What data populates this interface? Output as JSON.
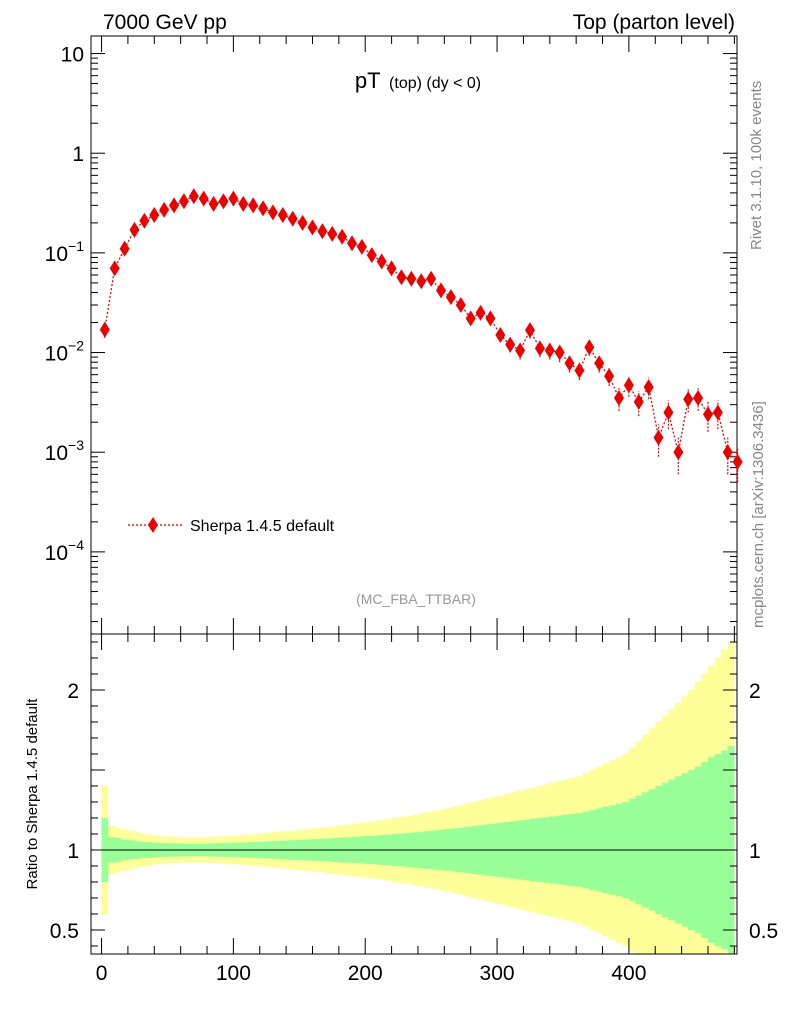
{
  "header": {
    "left": "7000 GeV pp",
    "right": "Top (parton level)"
  },
  "side": {
    "rivet": "Rivet 3.1.10,  100k events",
    "mcplots": "mcplots.cern.ch [arXiv:1306.3436]"
  },
  "colors": {
    "series": "#ee0000",
    "band_inner": "#99ff99",
    "band_outer": "#ffff99",
    "axis": "#000000",
    "faint_text": "#999999",
    "side_text": "#888888"
  },
  "chart_data": [
    {
      "type": "scatter",
      "title_main": "pT",
      "title_sub": "(top) (dy < 0)",
      "analysis_label": "(MC_FBA_TTBAR)",
      "legend_label": "Sherpa 1.4.5 default",
      "legend_placement": "lower-left",
      "yscale": "log",
      "xlim": [
        -8,
        482
      ],
      "ylim": [
        1.5e-05,
        15
      ],
      "y_ticks": [
        {
          "value": 10,
          "label": "10"
        },
        {
          "value": 1,
          "label": "1"
        },
        {
          "value": 0.1,
          "label": "10",
          "exp": "−1"
        },
        {
          "value": 0.01,
          "label": "10",
          "exp": "−2"
        },
        {
          "value": 0.001,
          "label": "10",
          "exp": "−3"
        },
        {
          "value": 0.0001,
          "label": "10",
          "exp": "−4"
        }
      ],
      "series": [
        {
          "name": "Sherpa 1.4.5 default",
          "x": [
            2.5,
            10,
            17.5,
            25,
            32.5,
            40,
            47.5,
            55,
            62.5,
            70,
            77.5,
            85,
            92.5,
            100,
            107.5,
            115,
            122.5,
            130,
            137.5,
            145,
            152.5,
            160,
            167.5,
            175,
            182.5,
            190,
            197.5,
            205,
            212.5,
            220,
            227.5,
            235,
            242.5,
            250,
            257.5,
            265,
            272.5,
            280,
            287.5,
            295,
            302.5,
            310,
            317.5,
            325,
            332.5,
            340,
            347.5,
            355,
            362.5,
            370,
            377.5,
            385,
            392.5,
            400,
            407.5,
            415,
            422.5,
            430,
            437.5,
            445,
            452.5,
            460,
            467.5,
            475,
            482.5
          ],
          "y": [
            0.017,
            0.07,
            0.11,
            0.17,
            0.21,
            0.24,
            0.27,
            0.3,
            0.33,
            0.37,
            0.35,
            0.31,
            0.33,
            0.35,
            0.31,
            0.3,
            0.28,
            0.255,
            0.24,
            0.22,
            0.2,
            0.18,
            0.165,
            0.155,
            0.145,
            0.125,
            0.115,
            0.095,
            0.082,
            0.07,
            0.057,
            0.055,
            0.052,
            0.055,
            0.042,
            0.036,
            0.03,
            0.022,
            0.025,
            0.022,
            0.015,
            0.012,
            0.0105,
            0.0168,
            0.011,
            0.0105,
            0.01,
            0.0078,
            0.0066,
            0.0113,
            0.0078,
            0.0058,
            0.0035,
            0.0047,
            0.0032,
            0.0045,
            0.0014,
            0.0025,
            0.001,
            0.0034,
            0.0035,
            0.0024,
            0.0025,
            0.001,
            0.0008
          ],
          "y_err": [
            0.003,
            0.006,
            0.008,
            0.01,
            0.012,
            0.012,
            0.013,
            0.014,
            0.015,
            0.016,
            0.016,
            0.015,
            0.015,
            0.016,
            0.015,
            0.014,
            0.013,
            0.012,
            0.012,
            0.011,
            0.01,
            0.01,
            0.009,
            0.009,
            0.008,
            0.008,
            0.007,
            0.007,
            0.006,
            0.006,
            0.005,
            0.005,
            0.005,
            0.005,
            0.004,
            0.004,
            0.004,
            0.003,
            0.003,
            0.003,
            0.002,
            0.002,
            0.002,
            0.003,
            0.002,
            0.002,
            0.002,
            0.0015,
            0.0013,
            0.002,
            0.0015,
            0.0012,
            0.0009,
            0.0011,
            0.0009,
            0.0011,
            0.0005,
            0.0008,
            0.0004,
            0.0009,
            0.0009,
            0.0008,
            0.0008,
            0.0004,
            0.0003
          ]
        }
      ]
    },
    {
      "type": "area",
      "ylabel": "Ratio to Sherpa 1.4.5 default",
      "xlim": [
        -8,
        482
      ],
      "ylim": [
        0.35,
        2.35
      ],
      "reference_line": 1,
      "x_ticks": [
        0,
        100,
        200,
        300,
        400
      ],
      "y_ticks": [
        0.5,
        1,
        2
      ],
      "bin_edges_start": 0,
      "bin_width": 5,
      "inner_band_half_width": [
        0.2,
        0.08,
        0.075,
        0.065,
        0.06,
        0.055,
        0.05,
        0.048,
        0.045,
        0.043,
        0.042,
        0.041,
        0.04,
        0.04,
        0.04,
        0.04,
        0.041,
        0.042,
        0.043,
        0.044,
        0.045,
        0.047,
        0.049,
        0.05,
        0.052,
        0.054,
        0.056,
        0.058,
        0.06,
        0.062,
        0.064,
        0.066,
        0.068,
        0.07,
        0.072,
        0.075,
        0.078,
        0.08,
        0.082,
        0.085,
        0.088,
        0.09,
        0.093,
        0.096,
        0.1,
        0.103,
        0.106,
        0.11,
        0.114,
        0.118,
        0.122,
        0.126,
        0.13,
        0.135,
        0.14,
        0.145,
        0.15,
        0.155,
        0.16,
        0.165,
        0.17,
        0.175,
        0.18,
        0.185,
        0.19,
        0.195,
        0.2,
        0.205,
        0.21,
        0.215,
        0.22,
        0.225,
        0.23,
        0.24,
        0.25,
        0.26,
        0.27,
        0.28,
        0.29,
        0.3,
        0.32,
        0.34,
        0.36,
        0.38,
        0.4,
        0.42,
        0.44,
        0.46,
        0.48,
        0.5,
        0.52,
        0.55,
        0.58,
        0.6,
        0.62,
        0.65
      ],
      "outer_band_half_width": [
        0.4,
        0.15,
        0.14,
        0.13,
        0.12,
        0.11,
        0.1,
        0.095,
        0.09,
        0.086,
        0.083,
        0.081,
        0.08,
        0.08,
        0.08,
        0.08,
        0.081,
        0.083,
        0.085,
        0.088,
        0.09,
        0.093,
        0.097,
        0.1,
        0.104,
        0.108,
        0.112,
        0.116,
        0.12,
        0.124,
        0.128,
        0.132,
        0.136,
        0.14,
        0.145,
        0.15,
        0.155,
        0.16,
        0.165,
        0.17,
        0.175,
        0.18,
        0.186,
        0.192,
        0.2,
        0.206,
        0.212,
        0.22,
        0.228,
        0.236,
        0.244,
        0.252,
        0.26,
        0.27,
        0.28,
        0.29,
        0.3,
        0.31,
        0.32,
        0.33,
        0.34,
        0.35,
        0.36,
        0.37,
        0.38,
        0.39,
        0.4,
        0.41,
        0.42,
        0.43,
        0.44,
        0.45,
        0.46,
        0.48,
        0.5,
        0.52,
        0.54,
        0.56,
        0.58,
        0.6,
        0.64,
        0.68,
        0.72,
        0.76,
        0.8,
        0.84,
        0.88,
        0.92,
        0.96,
        1.0,
        1.05,
        1.1,
        1.15,
        1.2,
        1.25,
        1.3
      ]
    }
  ]
}
